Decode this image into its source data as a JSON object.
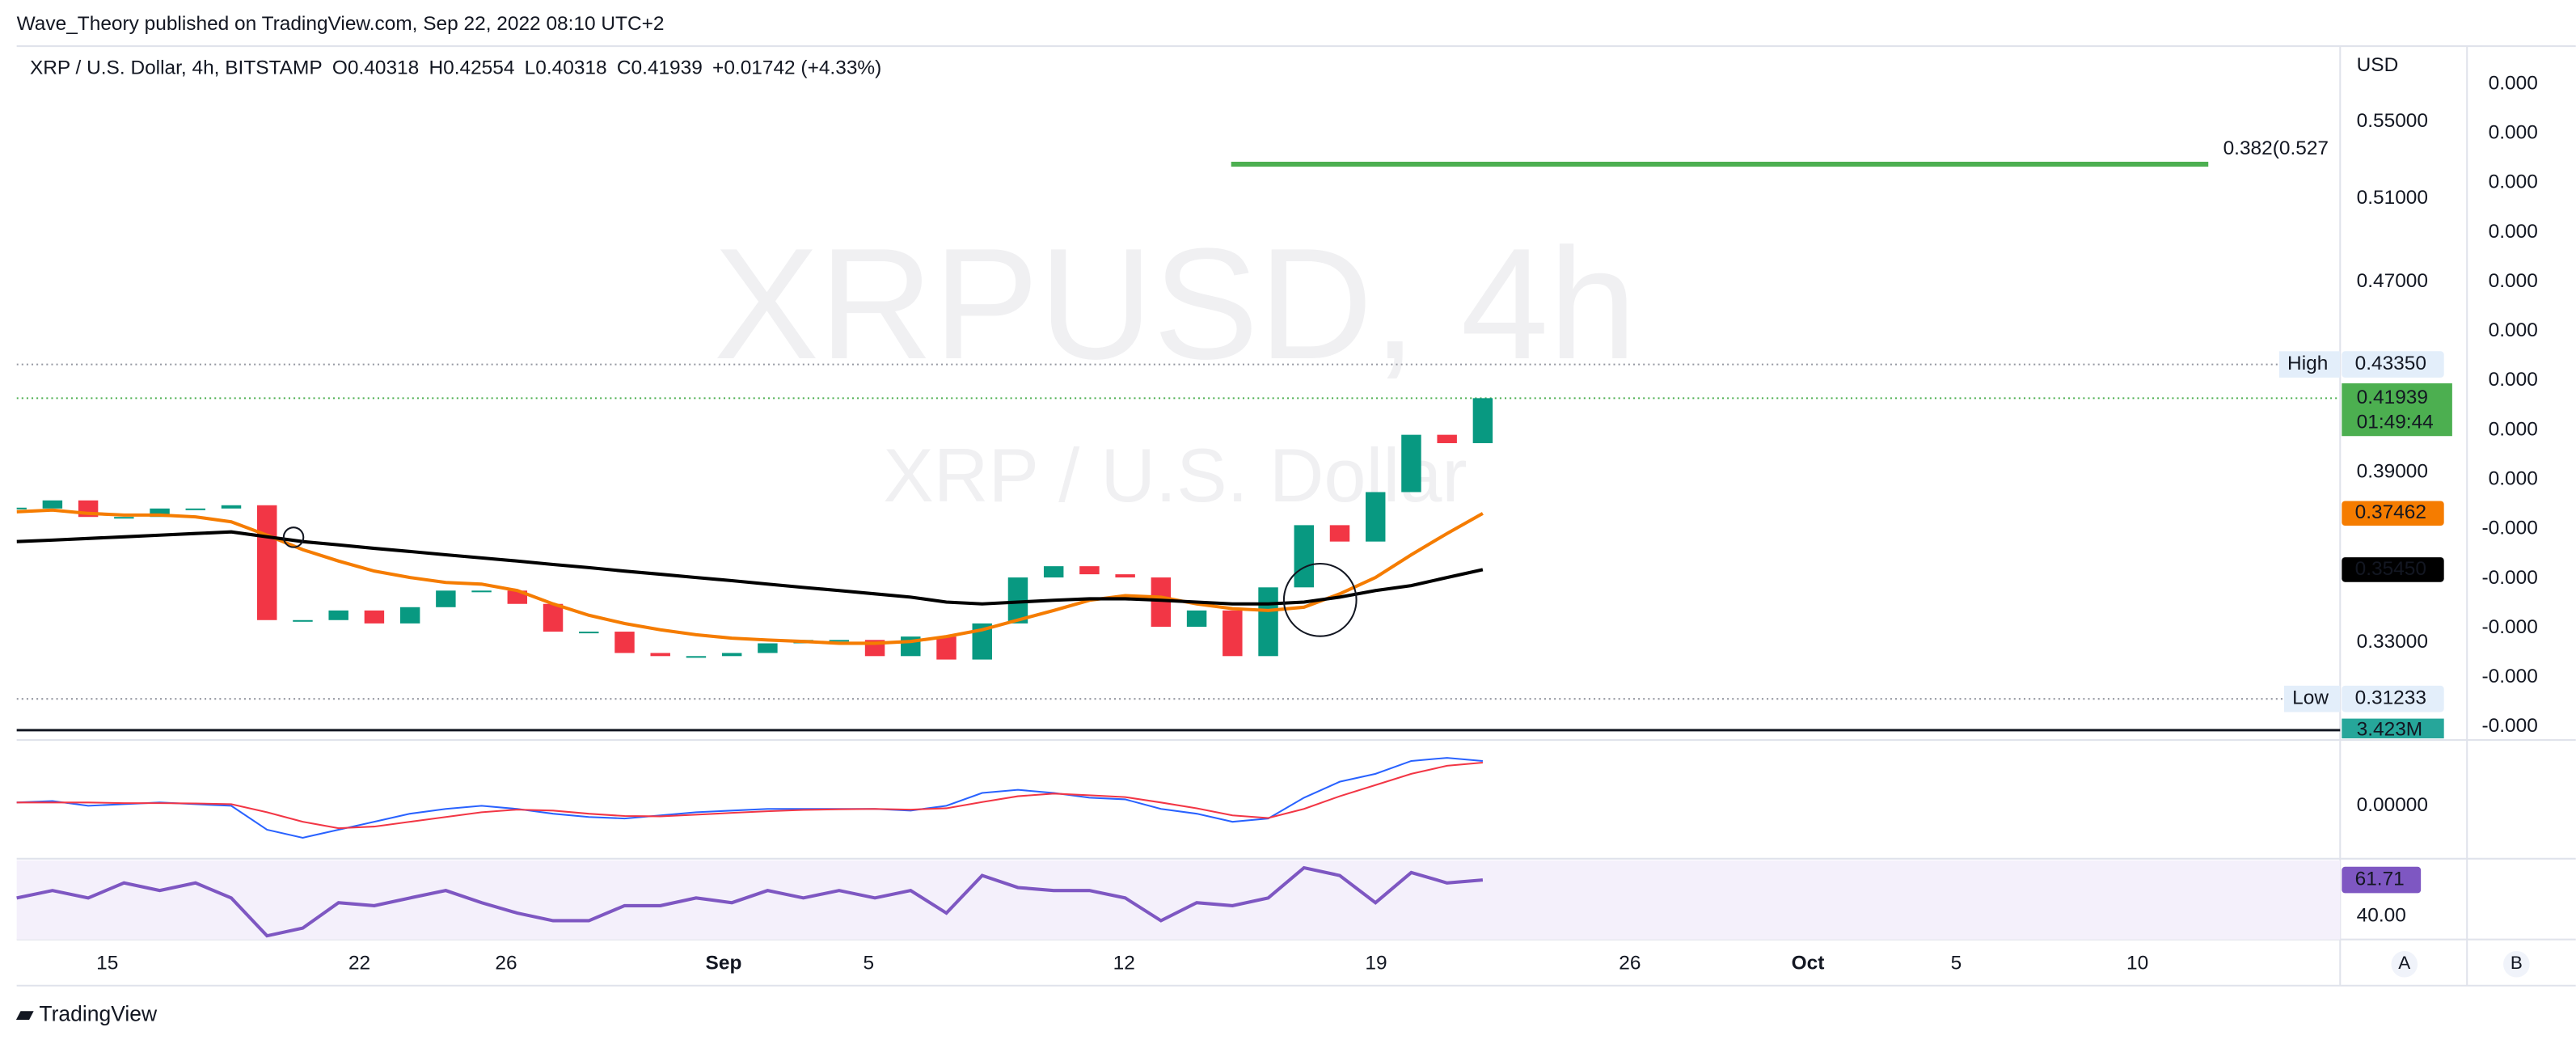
{
  "header": {
    "publisher": "Wave_Theory published on TradingView.com, Sep 22, 2022 08:10 UTC+2",
    "symbol": "XRP / U.S. Dollar, 4h, BITSTAMP",
    "ohlc": [
      "O0.40318",
      "H0.42554",
      "L0.40318",
      "C0.41939"
    ],
    "change": "+0.01742 (+4.33%)",
    "currency": "USD"
  },
  "footer": {
    "brand": "TradingView",
    "buttons": [
      "A",
      "B"
    ]
  },
  "time_labels": [
    "15",
    "22",
    "26",
    "Sep",
    "5",
    "12",
    "19",
    "26",
    "Oct",
    "5",
    "10"
  ],
  "scale2_labels": [
    "0.000",
    "0.000",
    "0.000",
    "0.000",
    "0.000",
    "0.000",
    "0.000",
    "0.000",
    "0.000",
    "-0.000",
    "-0.000",
    "-0.000",
    "-0.000",
    "-0.000"
  ],
  "chart_data": [
    {
      "type": "candlestick",
      "title": "XRPUSD, 4h",
      "subtitle": "XRP / U.S. Dollar",
      "values": [
        0.3764,
        0.3794,
        0.3733,
        0.3733,
        0.3764,
        0.3764,
        0.3776,
        0.3374,
        0.3374,
        0.3406,
        0.3363,
        0.3417,
        0.3473,
        0.3473,
        0.3428,
        0.3336,
        0.3336,
        0.3267,
        0.3257,
        0.3257,
        0.3267,
        0.3298,
        0.3309,
        0.3309,
        0.3257,
        0.332,
        0.3246,
        0.3363,
        0.3518,
        0.3557,
        0.3529,
        0.3518,
        0.3352,
        0.3406,
        0.3257,
        0.3484,
        0.3703,
        0.3644,
        0.3825,
        0.4046,
        0.4013,
        0.41939
      ],
      "colors": {
        "up": "#089981",
        "down": "#f23645"
      },
      "log_scale": true,
      "ylim": [
        0.3029,
        0.5922
      ],
      "yticks": [
        {
          "value": 0.55,
          "label": "0.55000"
        },
        {
          "value": 0.51,
          "label": "0.51000"
        },
        {
          "value": 0.47,
          "label": "0.47000"
        },
        {
          "value": 0.39,
          "label": "0.39000"
        },
        {
          "value": 0.33,
          "label": "0.33000"
        }
      ],
      "moving_averages": [
        {
          "color": "#f57c00",
          "values": [
            0.3752,
            0.3758,
            0.3746,
            0.374,
            0.374,
            0.3733,
            0.3715,
            0.3667,
            0.3615,
            0.3575,
            0.354,
            0.3518,
            0.3501,
            0.3495,
            0.3473,
            0.3428,
            0.339,
            0.3363,
            0.3342,
            0.3326,
            0.3315,
            0.3309,
            0.3304,
            0.3298,
            0.3298,
            0.3304,
            0.332,
            0.3342,
            0.3374,
            0.3406,
            0.344,
            0.3456,
            0.3451,
            0.3428,
            0.3412,
            0.3406,
            0.3417,
            0.3462,
            0.3518,
            0.3597,
            0.3673,
            0.37462
          ],
          "value_label": "0.37462"
        },
        {
          "color": "#000000",
          "values": [
            0.3644,
            0.3649,
            0.3655,
            0.3661,
            0.3667,
            0.3673,
            0.3679,
            0.3661,
            0.3644,
            0.3632,
            0.362,
            0.3609,
            0.3597,
            0.3586,
            0.3575,
            0.3563,
            0.3552,
            0.354,
            0.3529,
            0.3518,
            0.3507,
            0.3495,
            0.3484,
            0.3473,
            0.3462,
            0.3451,
            0.3434,
            0.3428,
            0.3434,
            0.344,
            0.3445,
            0.3445,
            0.344,
            0.3434,
            0.3428,
            0.3428,
            0.3434,
            0.3451,
            0.3473,
            0.349,
            0.3518,
            0.3545
          ],
          "value_label": "0.35450"
        }
      ],
      "fib": {
        "label": "0.382(0.527",
        "value": 0.5275,
        "color": "#4caf50"
      },
      "high": {
        "label": "High",
        "value": 0.4335,
        "value_label": "0.43350"
      },
      "low": {
        "label": "Low",
        "value": 0.31233,
        "value_label": "0.31233"
      },
      "last": {
        "value": 0.41939,
        "value_label": "0.41939",
        "countdown": "01:49:44",
        "color": "#4caf50"
      },
      "volume_label": "3.423M"
    },
    {
      "type": "line",
      "ylim": [
        -0.015,
        0.019
      ],
      "yticks": [
        {
          "value": 0,
          "label": "0.00000"
        }
      ],
      "series": [
        {
          "color": "#2962ff",
          "values": [
            0.001,
            0.0015,
            0,
            0.0005,
            0.001,
            0.0005,
            0,
            -0.0075,
            -0.01,
            -0.0075,
            -0.005,
            -0.0025,
            -0.001,
            0,
            -0.001,
            -0.0025,
            -0.0035,
            -0.004,
            -0.003,
            -0.002,
            -0.0015,
            -0.001,
            -0.001,
            -0.001,
            -0.001,
            -0.0015,
            0,
            0.004,
            0.005,
            0.004,
            0.0025,
            0.002,
            -0.001,
            -0.0025,
            -0.005,
            -0.004,
            0.0025,
            0.0075,
            0.01,
            0.014,
            0.015,
            0.014
          ]
        },
        {
          "color": "#f23645",
          "values": [
            0.001,
            0.001,
            0.001,
            0.0008,
            0.0008,
            0.0007,
            0.0005,
            -0.002,
            -0.005,
            -0.007,
            -0.0065,
            -0.005,
            -0.0035,
            -0.002,
            -0.0012,
            -0.0015,
            -0.0025,
            -0.0032,
            -0.0033,
            -0.0028,
            -0.0022,
            -0.0017,
            -0.0013,
            -0.0011,
            -0.001,
            -0.0012,
            -0.0008,
            0.0012,
            0.003,
            0.0038,
            0.0033,
            0.0027,
            0.001,
            -0.0008,
            -0.003,
            -0.0038,
            -0.001,
            0.003,
            0.0065,
            0.01,
            0.0125,
            0.0135
          ]
        }
      ]
    },
    {
      "type": "line",
      "ylim": [
        28,
        71.5
      ],
      "yticks": [
        {
          "value": 40,
          "label": "40.00"
        }
      ],
      "series": [
        {
          "color": "#7e57c2",
          "values": [
            50.9,
            55.4,
            50.9,
            59.9,
            55.4,
            59.9,
            50.9,
            28.2,
            32.8,
            48.1,
            46.3,
            50.9,
            55.4,
            48.1,
            41.8,
            37.3,
            37.3,
            46.3,
            46.3,
            50.9,
            48.1,
            55.4,
            50.9,
            55.4,
            50.9,
            55.4,
            41.8,
            64.4,
            57.2,
            55.4,
            55.4,
            50.9,
            37.3,
            48.1,
            46.3,
            50.9,
            69,
            64.4,
            48.1,
            66.2,
            59.9,
            61.71
          ],
          "value_label": "61.71"
        }
      ]
    }
  ]
}
